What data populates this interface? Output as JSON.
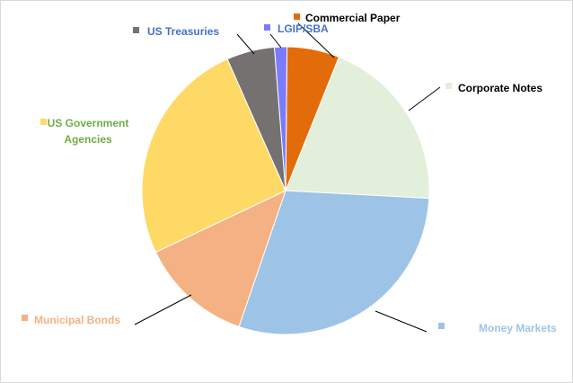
{
  "chart_data": {
    "type": "pie",
    "title": "",
    "slices": [
      {
        "label": "Commercial Paper",
        "value": 5.9,
        "color": "#e36c0a",
        "text_color": "#000000"
      },
      {
        "label": "Corporate Notes",
        "value": 19.8,
        "color": "#e2efda",
        "text_color": "#000000"
      },
      {
        "label": "Money Markets",
        "value": 29.4,
        "color": "#9dc3e6",
        "text_color": "#9dc3e6"
      },
      {
        "label": "Municipal Bonds",
        "value": 12.7,
        "color": "#f4b183",
        "text_color": "#f4b183"
      },
      {
        "label": "US Government Agencies",
        "value": 25.4,
        "color": "#ffd966",
        "text_color": "#70ad47",
        "label_lines": [
          "US Government",
          "Agencies"
        ]
      },
      {
        "label": "US Treasuries",
        "value": 5.4,
        "color": "#767171",
        "text_color": "#4472c4"
      },
      {
        "label": "LGIP/SBA",
        "value": 1.4,
        "color": "#7b7bff",
        "text_color": "#4472c4"
      }
    ],
    "legend_position": "none",
    "labels": "outside with leader lines"
  }
}
